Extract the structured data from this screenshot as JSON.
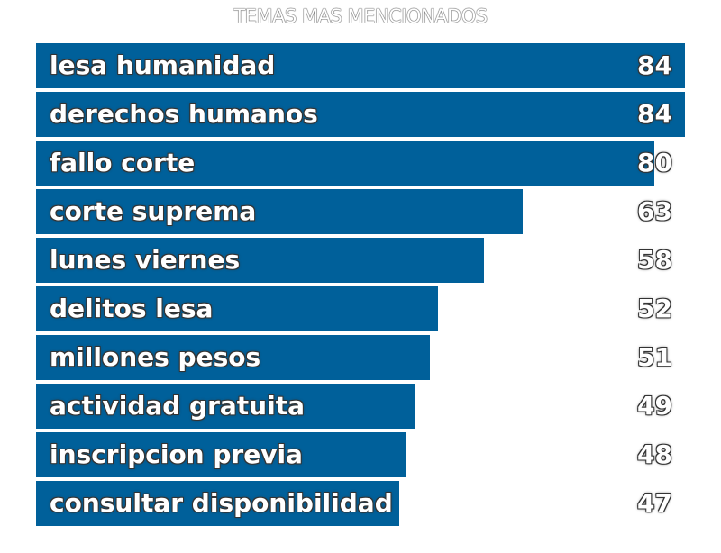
{
  "chart_data": {
    "type": "bar",
    "orientation": "horizontal",
    "title": "TEMAS MAS MENCIONADOS",
    "categories": [
      "lesa humanidad",
      "derechos humanos",
      "fallo corte",
      "corte suprema",
      "lunes viernes",
      "delitos lesa",
      "millones pesos",
      "actividad gratuita",
      "inscripcion previa",
      "consultar disponibilidad"
    ],
    "values": [
      84,
      84,
      80,
      63,
      58,
      52,
      51,
      49,
      48,
      47
    ],
    "xlim": [
      0,
      84
    ],
    "bar_color": "#00609a",
    "grid": false,
    "legend": "none"
  }
}
